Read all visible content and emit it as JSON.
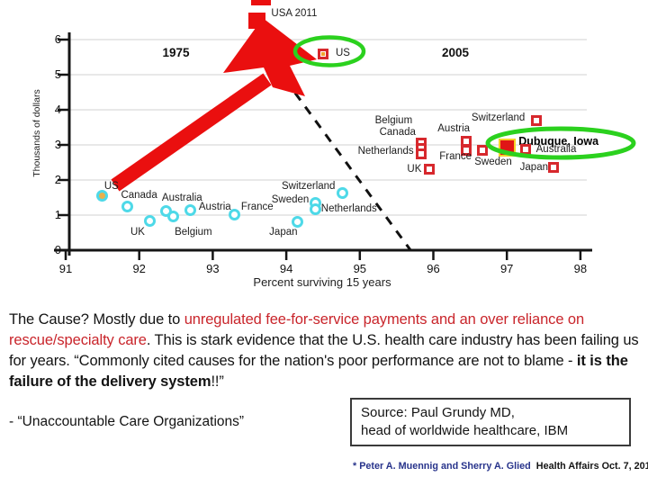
{
  "slide": {
    "commentary": {
      "segments": [
        {
          "text": "The Cause? Mostly due to ",
          "style": "normal"
        },
        {
          "text": "unregulated fee-for-service payments and an over reliance on rescue/specialty care",
          "style": "red"
        },
        {
          "text": ". This is stark evidence that the U.S. health care industry has been failing us for years. “Commonly cited causes for the nation's poor performance are not to blame - ",
          "style": "normal"
        },
        {
          "text": "it is the failure of the delivery system",
          "style": "bold"
        },
        {
          "text": "!!”",
          "style": "normal"
        }
      ]
    },
    "attribution": "- “Unaccountable Care Organizations”",
    "source_box": {
      "line1": "Source: Paul Grundy MD,",
      "line2": "head of worldwide healthcare, IBM"
    },
    "footnote": {
      "authors": "* Peter A. Muennig and Sherry A. Glied",
      "publication": "Health Affairs  Oct. 7, 2010"
    }
  },
  "chart_data": {
    "type": "scatter",
    "xlabel": "Percent surviving 15 years",
    "ylabel": "Thousands of dollars",
    "xlim": [
      91,
      98
    ],
    "ylim": [
      0,
      6
    ],
    "x_ticks": [
      91,
      92,
      93,
      94,
      95,
      96,
      97,
      98
    ],
    "y_ticks": [
      0,
      1,
      2,
      3,
      4,
      5,
      6
    ],
    "grid": "horizontal",
    "era_labels": [
      {
        "text": "1975",
        "x": 92.5,
        "y": 5.6
      },
      {
        "text": "2005",
        "x": 96.3,
        "y": 5.6
      }
    ],
    "series": [
      {
        "name": "1975",
        "marker": "ring",
        "color": "#4ED9E8",
        "points": [
          {
            "country": "US",
            "x": 91.5,
            "y": 1.55,
            "core": "#E9B04C",
            "label_dx": 2,
            "label_dy": -17
          },
          {
            "country": "Canada",
            "x": 91.85,
            "y": 1.23,
            "label_dx": -8,
            "label_dy": -19
          },
          {
            "country": "UK",
            "x": 92.15,
            "y": 0.82,
            "label_dx": -22,
            "label_dy": 6
          },
          {
            "country": "Australia",
            "x": 92.37,
            "y": 1.1,
            "label_dx": -5,
            "label_dy": -21
          },
          {
            "country": "Belgium",
            "x": 92.47,
            "y": 0.95,
            "label_dx": 1,
            "label_dy": 11
          },
          {
            "country": "Austria",
            "x": 92.7,
            "y": 1.13,
            "label_dx": 9,
            "label_dy": -10
          },
          {
            "country": "France",
            "x": 93.3,
            "y": 1.0,
            "label_dx": 7,
            "label_dy": -15
          },
          {
            "country": "Japan",
            "x": 94.16,
            "y": 0.8,
            "label_dx": -32,
            "label_dy": 5
          },
          {
            "country": "Sweden",
            "x": 94.4,
            "y": 1.33,
            "label_dx": -49,
            "label_dy": -10
          },
          {
            "country": "Netherlands",
            "x": 94.4,
            "y": 1.15,
            "label_dx": 6,
            "label_dy": -7
          },
          {
            "country": "Switzerland",
            "x": 94.77,
            "y": 1.62,
            "label_dx": -68,
            "label_dy": -14
          }
        ]
      },
      {
        "name": "2005",
        "marker": "square",
        "color": "#D7282D",
        "points": [
          {
            "country": "US",
            "x": 94.5,
            "y": 5.6,
            "core": "#F0A32F",
            "label_dx": 14,
            "label_dy": -7
          },
          {
            "country": "Belgium",
            "x": 95.83,
            "y": 3.05,
            "label_dx": -51,
            "label_dy": -31
          },
          {
            "country": "Canada",
            "x": 95.83,
            "y": 2.9,
            "label_dx": -46,
            "label_dy": -24
          },
          {
            "country": "Netherlands",
            "x": 95.83,
            "y": 2.75,
            "label_dx": -70,
            "label_dy": -9
          },
          {
            "country": "UK",
            "x": 95.95,
            "y": 2.3,
            "label_dx": -25,
            "label_dy": -6
          },
          {
            "country": "Austria",
            "x": 96.45,
            "y": 3.1,
            "label_dx": -32,
            "label_dy": -20
          },
          {
            "country": "France",
            "x": 96.45,
            "y": 2.85,
            "label_dx": -30,
            "label_dy": 1
          },
          {
            "country": "Sweden",
            "x": 96.67,
            "y": 2.85,
            "label_dx": -9,
            "label_dy": 7
          },
          {
            "country": "Switzerland",
            "x": 97.4,
            "y": 3.7,
            "label_dx": -72,
            "label_dy": -9
          },
          {
            "country": "Dubuque, Iowa",
            "x": 97.0,
            "y": 2.92,
            "marker": "filled-rect",
            "bold": true,
            "label_dx": 13,
            "label_dy": -13
          },
          {
            "country": "Australia",
            "x": 97.25,
            "y": 2.87,
            "label_dx": 12,
            "label_dy": -6
          },
          {
            "country": "Japan",
            "x": 97.63,
            "y": 2.36,
            "label_dx": -37,
            "label_dy": -6
          }
        ]
      }
    ],
    "annotations": [
      {
        "text": "USA 2011",
        "x": 93.6,
        "y": 6.55,
        "marker": "filled-square",
        "label_dx": 16,
        "label_dy": -14
      }
    ],
    "dashed_line": {
      "x1": 93.57,
      "y1": 6.05,
      "x2": 95.69,
      "y2": 0
    },
    "highlights": [
      {
        "target": "US 2005",
        "shape": "ellipse",
        "color": "#2BD11E"
      },
      {
        "target": "Dubuque, Iowa",
        "shape": "ellipse",
        "color": "#2BD11E"
      }
    ],
    "arrow": {
      "from": "US 1975",
      "to": "USA 2011",
      "color": "#EA0F0F"
    }
  }
}
